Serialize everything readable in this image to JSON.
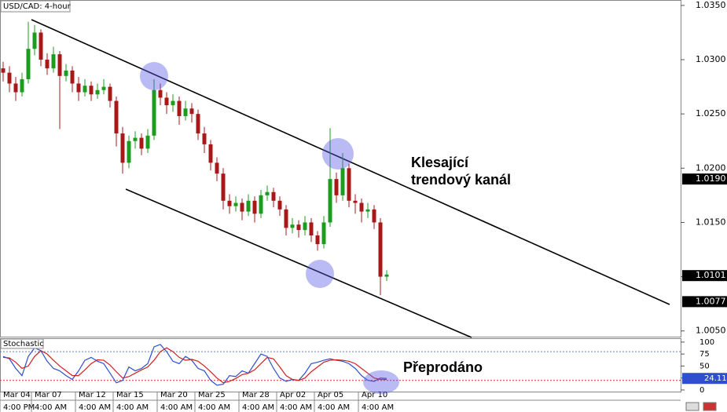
{
  "chart_data": {
    "type": "candlestick",
    "title": "USD/CAD: 4-hour",
    "annotations": [
      "Klesající",
      "trendový kanál",
      "Přeprodáno"
    ],
    "up_color": "#1c9c1c",
    "down_color": "#a81818",
    "categories": [
      "Mar 04",
      null,
      null,
      null,
      null,
      "Mar 07",
      null,
      null,
      null,
      null,
      null,
      null,
      "Mar 12",
      null,
      null,
      null,
      null,
      null,
      "Mar 15",
      null,
      null,
      null,
      null,
      null,
      null,
      "Mar 20",
      null,
      null,
      null,
      null,
      null,
      "Mar 25",
      null,
      null,
      null,
      null,
      null,
      null,
      "Mar 28",
      null,
      null,
      null,
      null,
      null,
      "Apr 02",
      null,
      null,
      null,
      null,
      null,
      "Apr 05",
      null,
      null,
      null,
      null,
      null,
      null,
      "Apr 10",
      null,
      null,
      null,
      null
    ],
    "times": [
      "4:00 PM",
      null,
      null,
      null,
      null,
      "4:00 AM",
      null,
      null,
      null,
      null,
      null,
      null,
      "4:00 AM",
      null,
      null,
      null,
      null,
      null,
      "4:00 AM",
      null,
      null,
      null,
      null,
      null,
      null,
      "4:00 AM",
      null,
      null,
      null,
      null,
      null,
      "4:00 AM",
      null,
      null,
      null,
      null,
      null,
      null,
      "4:00 AM",
      null,
      null,
      null,
      null,
      null,
      "4:00 AM",
      null,
      null,
      null,
      null,
      null,
      "4:00 AM",
      null,
      null,
      null,
      null,
      null,
      null,
      "4:00 AM",
      null,
      null,
      null,
      null
    ],
    "candles": {
      "open": [
        1.0292,
        1.0288,
        1.0278,
        1.027,
        1.0282,
        1.031,
        1.0325,
        1.03,
        1.0292,
        1.0305,
        1.0285,
        1.029,
        1.0278,
        1.027,
        1.0276,
        1.0268,
        1.0272,
        1.0275,
        1.0262,
        1.0232,
        1.0205,
        1.0225,
        1.0228,
        1.0218,
        1.023,
        1.0272,
        1.0265,
        1.0258,
        1.0262,
        1.0248,
        1.0255,
        1.025,
        1.0232,
        1.0222,
        1.0205,
        1.0195,
        1.017,
        1.0165,
        1.0168,
        1.016,
        1.017,
        1.0158,
        1.0175,
        1.0178,
        1.017,
        1.0162,
        1.0145,
        1.0148,
        1.0143,
        1.015,
        1.0138,
        1.013,
        1.015,
        1.019,
        1.0175,
        1.02,
        1.017,
        1.0168,
        1.016,
        1.0162,
        1.015,
        1.01
      ],
      "high": [
        1.0298,
        1.0294,
        1.0284,
        1.0288,
        1.0335,
        1.0332,
        1.0328,
        1.0306,
        1.0312,
        1.0308,
        1.0296,
        1.0294,
        1.0284,
        1.0282,
        1.028,
        1.0278,
        1.0282,
        1.0278,
        1.0266,
        1.0238,
        1.023,
        1.0234,
        1.0232,
        1.0236,
        1.0282,
        1.0278,
        1.027,
        1.0268,
        1.0266,
        1.0262,
        1.026,
        1.0254,
        1.0238,
        1.0226,
        1.021,
        1.02,
        1.0176,
        1.0174,
        1.0172,
        1.0176,
        1.0174,
        1.018,
        1.0184,
        1.0182,
        1.0174,
        1.0166,
        1.0154,
        1.0152,
        1.0156,
        1.0154,
        1.0142,
        1.0156,
        1.0237,
        1.0196,
        1.0214,
        1.0204,
        1.0176,
        1.0172,
        1.0168,
        1.0166,
        1.0154,
        1.0106
      ],
      "low": [
        1.028,
        1.027,
        1.0262,
        1.0266,
        1.0278,
        1.0304,
        1.0294,
        1.0286,
        1.0288,
        1.0236,
        1.028,
        1.027,
        1.0262,
        1.0266,
        1.0262,
        1.0264,
        1.0268,
        1.0256,
        1.022,
        1.0195,
        1.02,
        1.0218,
        1.0212,
        1.0214,
        1.0226,
        1.0258,
        1.025,
        1.0252,
        1.024,
        1.0244,
        1.0242,
        1.0226,
        1.0214,
        1.0198,
        1.0188,
        1.0162,
        1.0158,
        1.016,
        1.0152,
        1.0156,
        1.015,
        1.0154,
        1.017,
        1.0164,
        1.0156,
        1.0138,
        1.014,
        1.0136,
        1.0138,
        1.0132,
        1.0124,
        1.0126,
        1.0146,
        1.0168,
        1.017,
        1.0164,
        1.0158,
        1.015,
        1.0154,
        1.0144,
        1.0083,
        1.0096
      ],
      "close": [
        1.0288,
        1.0278,
        1.027,
        1.0282,
        1.031,
        1.0325,
        1.03,
        1.0292,
        1.0305,
        1.0285,
        1.029,
        1.0278,
        1.027,
        1.0276,
        1.0268,
        1.0272,
        1.0275,
        1.0262,
        1.0232,
        1.0205,
        1.0225,
        1.0228,
        1.0218,
        1.023,
        1.0272,
        1.0265,
        1.0258,
        1.0262,
        1.0248,
        1.0255,
        1.025,
        1.0232,
        1.0222,
        1.0205,
        1.0195,
        1.017,
        1.0165,
        1.0168,
        1.016,
        1.017,
        1.0158,
        1.0175,
        1.0178,
        1.017,
        1.0162,
        1.0145,
        1.0148,
        1.0143,
        1.015,
        1.0138,
        1.013,
        1.015,
        1.019,
        1.0175,
        1.02,
        1.017,
        1.0168,
        1.016,
        1.0162,
        1.015,
        1.01,
        1.0102
      ]
    },
    "ylim": [
      1.0044,
      1.0355
    ],
    "yticks": [
      {
        "value": 1.035,
        "label": "1.0350"
      },
      {
        "value": 1.03,
        "label": "1.0300"
      },
      {
        "value": 1.025,
        "label": "1.0250"
      },
      {
        "value": 1.02,
        "label": "1.0200"
      },
      {
        "value": 1.015,
        "label": "1.0150"
      },
      {
        "value": 1.01,
        "label": "1.0100"
      },
      {
        "value": 1.005,
        "label": "1.0050"
      }
    ],
    "price_markers": [
      {
        "value": 1.019,
        "label": "1.0190"
      },
      {
        "value": 1.0101,
        "label": "1.0101"
      },
      {
        "value": 1.0077,
        "label": "1.0077"
      }
    ],
    "stochastic": {
      "title": "Stochastic",
      "ylim": [
        -5,
        108
      ],
      "yticks": [
        100,
        75,
        50,
        25,
        0
      ],
      "levels": [
        80,
        20
      ],
      "marker": 24.11,
      "series": [
        {
          "color": "#2f4fd0",
          "values": [
            70,
            65,
            45,
            30,
            70,
            88,
            82,
            60,
            45,
            40,
            30,
            22,
            40,
            62,
            68,
            60,
            55,
            35,
            15,
            20,
            48,
            40,
            45,
            55,
            90,
            95,
            80,
            60,
            55,
            70,
            62,
            45,
            40,
            20,
            10,
            12,
            30,
            28,
            40,
            35,
            55,
            75,
            70,
            45,
            25,
            18,
            22,
            20,
            35,
            55,
            58,
            62,
            65,
            62,
            60,
            55,
            45,
            30,
            20,
            18,
            25,
            24.11
          ]
        },
        {
          "color": "#d02020",
          "values": [
            68,
            67,
            58,
            45,
            50,
            70,
            82,
            75,
            62,
            50,
            40,
            30,
            30,
            42,
            55,
            63,
            62,
            52,
            38,
            25,
            28,
            35,
            42,
            48,
            62,
            80,
            88,
            80,
            68,
            62,
            64,
            60,
            50,
            38,
            25,
            15,
            18,
            24,
            32,
            35,
            42,
            55,
            68,
            65,
            48,
            30,
            22,
            20,
            25,
            38,
            48,
            58,
            62,
            63,
            62,
            60,
            55,
            45,
            35,
            25,
            22,
            22
          ]
        }
      ]
    }
  }
}
